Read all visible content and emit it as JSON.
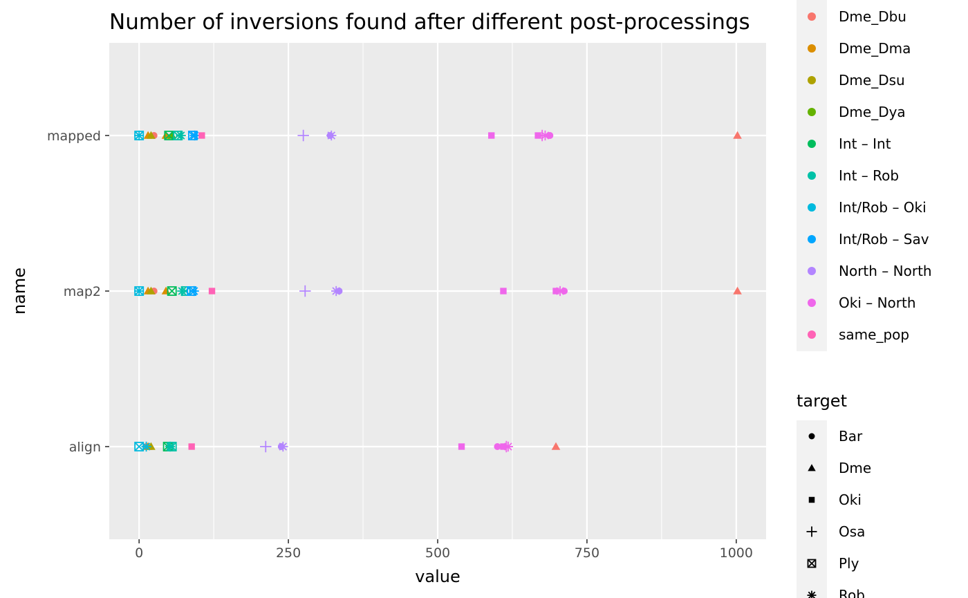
{
  "chart_data": {
    "type": "scatter",
    "title": "Number of inversions found after different post-processings",
    "xlabel": "value",
    "ylabel": "name",
    "xlim": [
      -50,
      1050
    ],
    "x_ticks": [
      0,
      250,
      500,
      750,
      1000
    ],
    "x_tick_labels": [
      "0",
      "250",
      "500",
      "750",
      "1000"
    ],
    "categories": [
      "mapped",
      "map2",
      "align"
    ],
    "grid": true,
    "legend_placement": "right",
    "colors": {
      "panel_bg": "#ebebeb",
      "grid": "#ffffff"
    },
    "color_legend": {
      "title": "",
      "entries": [
        {
          "name": "Dme_Dbu",
          "color": "#F8766D"
        },
        {
          "name": "Dme_Dma",
          "color": "#DB8E00"
        },
        {
          "name": "Dme_Dsu",
          "color": "#AEA200"
        },
        {
          "name": "Dme_Dya",
          "color": "#64B200"
        },
        {
          "name": "Int – Int",
          "color": "#00BD5C"
        },
        {
          "name": "Int – Rob",
          "color": "#00C1A7"
        },
        {
          "name": "Int/Rob – Oki",
          "color": "#00BADE"
        },
        {
          "name": "Int/Rob – Sav",
          "color": "#00A6FF"
        },
        {
          "name": "North – North",
          "color": "#B385FF"
        },
        {
          "name": "Oki – North",
          "color": "#EF67EB"
        },
        {
          "name": "same_pop",
          "color": "#FF63B6"
        }
      ]
    },
    "shape_legend": {
      "title": "target",
      "entries": [
        {
          "name": "Bar",
          "shape": "circle"
        },
        {
          "name": "Dme",
          "shape": "triangle"
        },
        {
          "name": "Oki",
          "shape": "square"
        },
        {
          "name": "Osa",
          "shape": "plus"
        },
        {
          "name": "Ply",
          "shape": "square-x"
        },
        {
          "name": "Rob",
          "shape": "asterisk"
        }
      ]
    },
    "points": [
      {
        "y": "mapped",
        "x": 1002,
        "series": "Dme_Dbu",
        "shape": "triangle"
      },
      {
        "y": "mapped",
        "x": 25,
        "series": "Dme_Dbu",
        "shape": "circle"
      },
      {
        "y": "mapped",
        "x": 15,
        "series": "Dme_Dma",
        "shape": "triangle"
      },
      {
        "y": "mapped",
        "x": 45,
        "series": "Dme_Dma",
        "shape": "triangle"
      },
      {
        "y": "mapped",
        "x": 20,
        "series": "Dme_Dsu",
        "shape": "triangle"
      },
      {
        "y": "mapped",
        "x": 55,
        "series": "Dme_Dya",
        "shape": "triangle"
      },
      {
        "y": "mapped",
        "x": 50,
        "series": "Int – Int",
        "shape": "square-x"
      },
      {
        "y": "mapped",
        "x": 70,
        "series": "Int – Rob",
        "shape": "asterisk"
      },
      {
        "y": "mapped",
        "x": 65,
        "series": "Int – Rob",
        "shape": "square-x"
      },
      {
        "y": "mapped",
        "x": 0,
        "series": "Int/Rob – Oki",
        "shape": "square-x"
      },
      {
        "y": "mapped",
        "x": 0,
        "series": "Int/Rob – Oki",
        "shape": "asterisk"
      },
      {
        "y": "mapped",
        "x": 90,
        "series": "Int/Rob – Sav",
        "shape": "square-x"
      },
      {
        "y": "mapped",
        "x": 93,
        "series": "Int/Rob – Sav",
        "shape": "asterisk"
      },
      {
        "y": "mapped",
        "x": 275,
        "series": "North – North",
        "shape": "plus"
      },
      {
        "y": "mapped",
        "x": 320,
        "series": "North – North",
        "shape": "circle"
      },
      {
        "y": "mapped",
        "x": 322,
        "series": "North – North",
        "shape": "asterisk"
      },
      {
        "y": "mapped",
        "x": 590,
        "series": "Oki – North",
        "shape": "square"
      },
      {
        "y": "mapped",
        "x": 668,
        "series": "Oki – North",
        "shape": "square"
      },
      {
        "y": "mapped",
        "x": 675,
        "series": "Oki – North",
        "shape": "plus"
      },
      {
        "y": "mapped",
        "x": 680,
        "series": "Oki – North",
        "shape": "asterisk"
      },
      {
        "y": "mapped",
        "x": 688,
        "series": "Oki – North",
        "shape": "circle"
      },
      {
        "y": "mapped",
        "x": 105,
        "series": "same_pop",
        "shape": "square"
      },
      {
        "y": "map2",
        "x": 1002,
        "series": "Dme_Dbu",
        "shape": "triangle"
      },
      {
        "y": "map2",
        "x": 25,
        "series": "Dme_Dbu",
        "shape": "circle"
      },
      {
        "y": "map2",
        "x": 15,
        "series": "Dme_Dma",
        "shape": "triangle"
      },
      {
        "y": "map2",
        "x": 45,
        "series": "Dme_Dma",
        "shape": "triangle"
      },
      {
        "y": "map2",
        "x": 20,
        "series": "Dme_Dsu",
        "shape": "triangle"
      },
      {
        "y": "map2",
        "x": 55,
        "series": "Int – Int",
        "shape": "square-x"
      },
      {
        "y": "map2",
        "x": 72,
        "series": "Int – Rob",
        "shape": "asterisk"
      },
      {
        "y": "map2",
        "x": 78,
        "series": "Int – Rob",
        "shape": "square-x"
      },
      {
        "y": "map2",
        "x": 0,
        "series": "Int/Rob – Oki",
        "shape": "square-x"
      },
      {
        "y": "map2",
        "x": 0,
        "series": "Int/Rob – Oki",
        "shape": "asterisk"
      },
      {
        "y": "map2",
        "x": 88,
        "series": "Int/Rob – Sav",
        "shape": "square-x"
      },
      {
        "y": "map2",
        "x": 92,
        "series": "Int/Rob – Sav",
        "shape": "asterisk"
      },
      {
        "y": "map2",
        "x": 278,
        "series": "North – North",
        "shape": "plus"
      },
      {
        "y": "map2",
        "x": 330,
        "series": "North – North",
        "shape": "asterisk"
      },
      {
        "y": "map2",
        "x": 335,
        "series": "North – North",
        "shape": "circle"
      },
      {
        "y": "map2",
        "x": 610,
        "series": "Oki – North",
        "shape": "square"
      },
      {
        "y": "map2",
        "x": 698,
        "series": "Oki – North",
        "shape": "square"
      },
      {
        "y": "map2",
        "x": 705,
        "series": "Oki – North",
        "shape": "asterisk"
      },
      {
        "y": "map2",
        "x": 712,
        "series": "Oki – North",
        "shape": "circle"
      },
      {
        "y": "map2",
        "x": 122,
        "series": "same_pop",
        "shape": "square"
      },
      {
        "y": "align",
        "x": 698,
        "series": "Dme_Dbu",
        "shape": "triangle"
      },
      {
        "y": "align",
        "x": 12,
        "series": "Dme_Dbu",
        "shape": "circle"
      },
      {
        "y": "align",
        "x": 15,
        "series": "Dme_Dma",
        "shape": "triangle"
      },
      {
        "y": "align",
        "x": 20,
        "series": "Dme_Dsu",
        "shape": "triangle"
      },
      {
        "y": "align",
        "x": 48,
        "series": "Int – Int",
        "shape": "square-x"
      },
      {
        "y": "align",
        "x": 55,
        "series": "Int – Rob",
        "shape": "square-x"
      },
      {
        "y": "align",
        "x": 52,
        "series": "Int – Rob",
        "shape": "asterisk"
      },
      {
        "y": "align",
        "x": 0,
        "series": "Int/Rob – Oki",
        "shape": "square-x"
      },
      {
        "y": "align",
        "x": 12,
        "series": "Int/Rob – Oki",
        "shape": "asterisk"
      },
      {
        "y": "align",
        "x": 212,
        "series": "North – North",
        "shape": "plus"
      },
      {
        "y": "align",
        "x": 238,
        "series": "North – North",
        "shape": "circle"
      },
      {
        "y": "align",
        "x": 241,
        "series": "North – North",
        "shape": "asterisk"
      },
      {
        "y": "align",
        "x": 540,
        "series": "Oki – North",
        "shape": "square"
      },
      {
        "y": "align",
        "x": 600,
        "series": "Oki – North",
        "shape": "circle"
      },
      {
        "y": "align",
        "x": 610,
        "series": "Oki – North",
        "shape": "square"
      },
      {
        "y": "align",
        "x": 615,
        "series": "Oki – North",
        "shape": "plus"
      },
      {
        "y": "align",
        "x": 618,
        "series": "Oki – North",
        "shape": "asterisk"
      },
      {
        "y": "align",
        "x": 88,
        "series": "same_pop",
        "shape": "square"
      }
    ]
  }
}
